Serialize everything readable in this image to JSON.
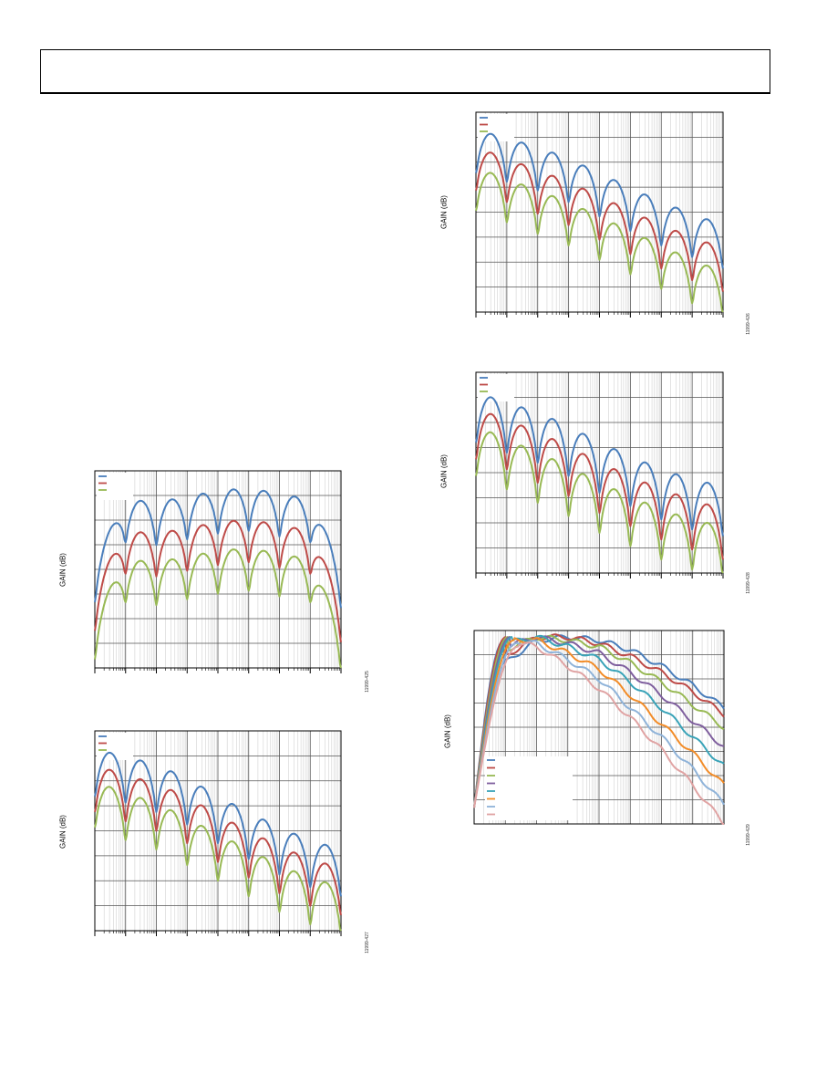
{
  "page": {
    "colors": {
      "blue": "#4a7ebb",
      "red": "#be4b48",
      "green": "#98b954"
    }
  },
  "figures": [
    {
      "id": "fig-425",
      "ylabel": "GAIN (dB)",
      "fig_id": "11999-425"
    },
    {
      "id": "fig-427",
      "ylabel": "GAIN (dB)",
      "fig_id": "11999-427"
    },
    {
      "id": "fig-426",
      "ylabel": "GAIN (dB)",
      "fig_id": "11999-426"
    },
    {
      "id": "fig-428",
      "ylabel": "GAIN (dB)",
      "fig_id": "11999-428"
    },
    {
      "id": "fig-429",
      "ylabel": "GAIN (dB)",
      "fig_id": "11999-429"
    }
  ],
  "chart_data": [
    {
      "type": "line",
      "figure": "fig-425",
      "ylabel": "GAIN (dB)",
      "grid": true,
      "legend_position": "top-left",
      "series": [
        {
          "color": "#4a7ebb",
          "values": [
            -26,
            -5,
            -6,
            -4,
            -2,
            -1,
            -3,
            -5,
            -28
          ]
        },
        {
          "color": "#be4b48",
          "values": [
            -36,
            -16,
            -17,
            -15,
            -13,
            -12,
            -14,
            -16,
            -40
          ]
        },
        {
          "color": "#98b954",
          "values": [
            -46,
            -26,
            -27,
            -25,
            -23,
            -22,
            -24,
            -26,
            -50
          ]
        }
      ]
    },
    {
      "type": "line",
      "figure": "fig-427",
      "ylabel": "GAIN (dB)",
      "grid": true,
      "legend_position": "top-left",
      "series": [
        {
          "color": "#4a7ebb",
          "values": [
            -5,
            -7,
            -10,
            -14,
            -20,
            -25,
            -30,
            -34,
            -37
          ]
        },
        {
          "color": "#be4b48",
          "values": [
            -10,
            -13,
            -16,
            -20,
            -26,
            -31,
            -36,
            -40,
            -43
          ]
        },
        {
          "color": "#98b954",
          "values": [
            -15,
            -19,
            -22,
            -27,
            -32,
            -37,
            -42,
            -46,
            -49
          ]
        }
      ]
    },
    {
      "type": "line",
      "figure": "fig-426",
      "ylabel": "GAIN (dB)",
      "grid": true,
      "legend_position": "top-left",
      "series": [
        {
          "color": "#4a7ebb",
          "values": [
            -5,
            -8,
            -11,
            -15,
            -20,
            -25,
            -30,
            -34,
            -38
          ]
        },
        {
          "color": "#be4b48",
          "values": [
            -11,
            -15,
            -19,
            -23,
            -28,
            -33,
            -38,
            -42,
            -46
          ]
        },
        {
          "color": "#98b954",
          "values": [
            -18,
            -22,
            -26,
            -30,
            -35,
            -40,
            -45,
            -50,
            -54
          ]
        }
      ]
    },
    {
      "type": "line",
      "figure": "fig-428",
      "ylabel": "GAIN (dB)",
      "grid": true,
      "legend_position": "top-left",
      "series": [
        {
          "color": "#4a7ebb",
          "values": [
            -3,
            -6,
            -9,
            -13,
            -18,
            -22,
            -26,
            -29,
            -31
          ]
        },
        {
          "color": "#be4b48",
          "values": [
            -8,
            -11,
            -15,
            -19,
            -24,
            -28,
            -32,
            -35,
            -38
          ]
        },
        {
          "color": "#98b954",
          "values": [
            -13,
            -17,
            -21,
            -25,
            -30,
            -34,
            -38,
            -41,
            -43
          ]
        }
      ]
    },
    {
      "type": "line",
      "figure": "fig-429",
      "ylabel": "GAIN (dB)",
      "grid": true,
      "legend_position": "bottom-left",
      "series": [
        {
          "color": "#4a7ebb",
          "values": [
            -40,
            -10,
            -3,
            -2,
            -3,
            -6,
            -11,
            -17,
            -24
          ]
        },
        {
          "color": "#be4b48",
          "values": [
            -40,
            -8,
            -2,
            -2,
            -4,
            -8,
            -13,
            -19,
            -26
          ]
        },
        {
          "color": "#98b954",
          "values": [
            -40,
            -6,
            -2,
            -3,
            -5,
            -10,
            -16,
            -23,
            -30
          ]
        },
        {
          "color": "#7f5f9e",
          "values": [
            -40,
            -5,
            -2,
            -4,
            -7,
            -13,
            -20,
            -28,
            -36
          ]
        },
        {
          "color": "#39a3b8",
          "values": [
            -40,
            -4,
            -2,
            -5,
            -9,
            -16,
            -24,
            -33,
            -42
          ]
        },
        {
          "color": "#f28c28",
          "values": [
            -40,
            -3,
            -3,
            -7,
            -12,
            -20,
            -29,
            -38,
            -48
          ]
        },
        {
          "color": "#8fb3d9",
          "values": [
            -40,
            -3,
            -4,
            -9,
            -15,
            -24,
            -33,
            -43,
            -54
          ]
        },
        {
          "color": "#e0a3a3",
          "values": [
            -40,
            -3,
            -5,
            -11,
            -18,
            -27,
            -37,
            -48,
            -60
          ]
        }
      ]
    }
  ]
}
